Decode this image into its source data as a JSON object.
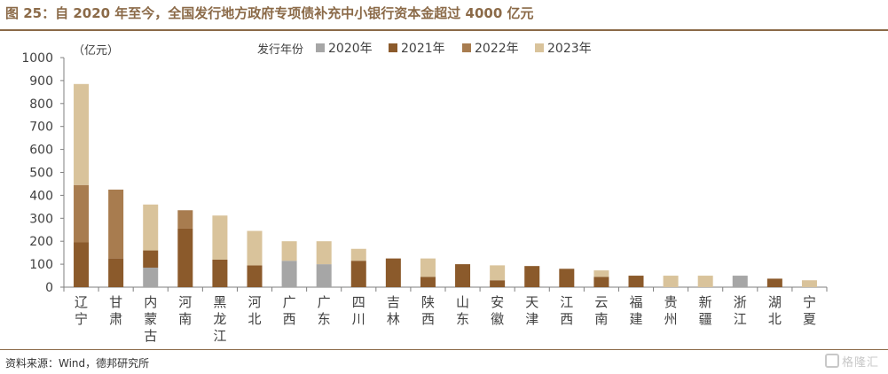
{
  "figure": {
    "title": "图 25：自 2020 年至今，全国发行地方政府专项债补充中小银行资本金超过 4000 亿元",
    "source": "资料来源：Wind，德邦研究所",
    "watermark": "格隆汇"
  },
  "chart_data": {
    "type": "bar",
    "stacked": true,
    "title": "",
    "unit_label": "（亿元）",
    "legend_title": "发行年份",
    "legend_position": "top",
    "ylim": [
      0,
      1000
    ],
    "yticks": [
      0,
      100,
      200,
      300,
      400,
      500,
      600,
      700,
      800,
      900,
      1000
    ],
    "categories": [
      "辽宁",
      "甘肃",
      "内蒙古",
      "河南",
      "黑龙江",
      "河北",
      "广西",
      "广东",
      "四川",
      "吉林",
      "陕西",
      "山东",
      "安徽",
      "天津",
      "江西",
      "云南",
      "福建",
      "贵州",
      "新疆",
      "浙江",
      "湖北",
      "宁夏"
    ],
    "series": [
      {
        "name": "2020年",
        "color": "#a6a6a6",
        "values": [
          0,
          0,
          85,
          0,
          0,
          0,
          115,
          100,
          0,
          0,
          0,
          0,
          0,
          0,
          0,
          0,
          0,
          0,
          0,
          50,
          0,
          0
        ]
      },
      {
        "name": "2021年",
        "color": "#8b5a2b",
        "values": [
          195,
          125,
          75,
          255,
          120,
          95,
          0,
          0,
          115,
          125,
          45,
          100,
          30,
          92,
          80,
          45,
          50,
          0,
          0,
          0,
          37,
          0
        ]
      },
      {
        "name": "2022年",
        "color": "#a87c4f",
        "values": [
          250,
          300,
          0,
          80,
          0,
          0,
          0,
          0,
          0,
          0,
          0,
          0,
          0,
          0,
          0,
          0,
          0,
          0,
          0,
          0,
          0,
          0
        ]
      },
      {
        "name": "2023年",
        "color": "#d9c39b",
        "values": [
          440,
          0,
          200,
          0,
          192,
          150,
          85,
          100,
          52,
          0,
          80,
          0,
          65,
          0,
          0,
          28,
          0,
          50,
          50,
          0,
          0,
          30
        ]
      }
    ]
  }
}
